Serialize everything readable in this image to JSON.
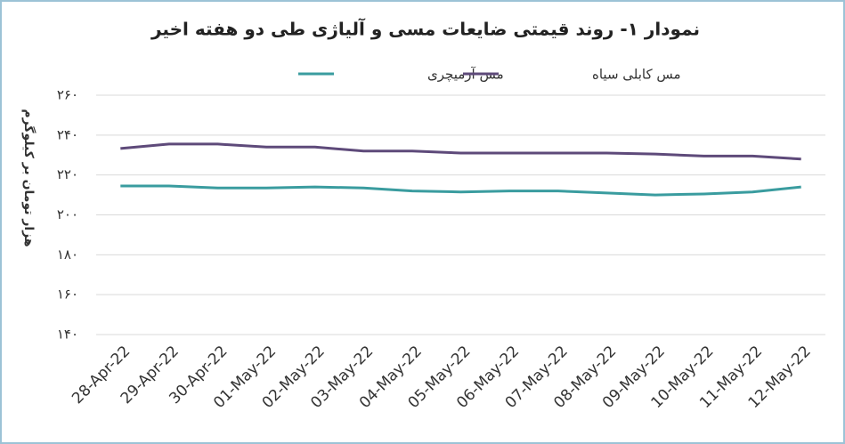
{
  "chart_data": {
    "type": "line",
    "title": "نمودار ۱- روند قیمتی ضایعات مسی و آلیاژی طی دو هفته اخیر",
    "y_label": "هزار تومان بر کیلوگرم",
    "categories": [
      "28-Apr-22",
      "29-Apr-22",
      "30-Apr-22",
      "01-May-22",
      "02-May-22",
      "03-May-22",
      "04-May-22",
      "05-May-22",
      "06-May-22",
      "07-May-22",
      "08-May-22",
      "09-May-22",
      "10-May-22",
      "11-May-22",
      "12-May-22"
    ],
    "series": [
      {
        "name": "مس آرمیچری",
        "color": "#3a9c9f",
        "values": [
          214.5,
          214.5,
          213.5,
          213.5,
          214,
          213.5,
          212,
          211.5,
          212,
          212,
          211,
          210,
          210.5,
          211.5,
          214
        ]
      },
      {
        "name": "مس کابلی سیاه",
        "color": "#5e4a7a",
        "values": [
          233.3,
          235.5,
          235.5,
          234,
          234,
          232,
          232,
          231,
          231,
          231,
          231,
          230.5,
          229.5,
          229.5,
          228
        ]
      }
    ],
    "ylim": [
      140,
      260
    ],
    "yticks": [
      {
        "value": 140,
        "label": "۱۴۰"
      },
      {
        "value": 160,
        "label": "۱۶۰"
      },
      {
        "value": 180,
        "label": "۱۸۰"
      },
      {
        "value": 200,
        "label": "۲۰۰"
      },
      {
        "value": 220,
        "label": "۲۲۰"
      },
      {
        "value": 240,
        "label": "۲۴۰"
      },
      {
        "value": 260,
        "label": "۲۶۰"
      }
    ],
    "grid": true,
    "legend": "top"
  }
}
